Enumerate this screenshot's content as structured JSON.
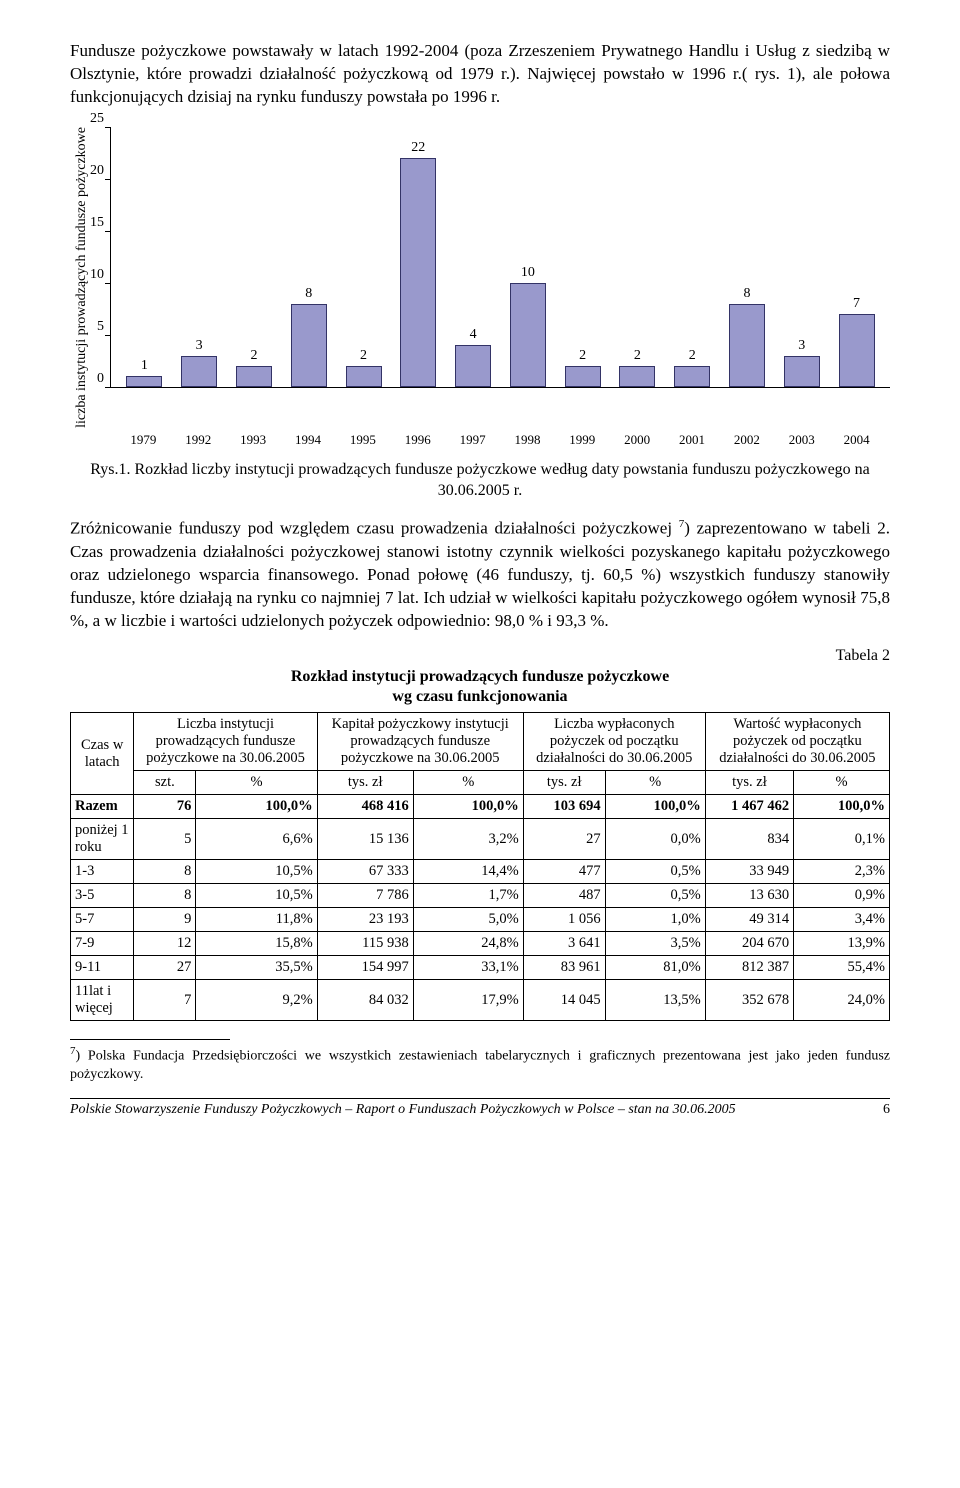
{
  "paragraphs": {
    "p1": "Fundusze pożyczkowe powstawały w latach 1992-2004 (poza Zrzeszeniem Prywatnego Handlu i Usług z siedzibą w Olsztynie, które prowadzi działalność pożyczkową od 1979 r.). Najwięcej powstało w 1996 r.( rys. 1), ale połowa funkcjonujących dzisiaj na rynku funduszy powstała po 1996 r.",
    "p2_a": "Zróżnicowanie funduszy pod względem czasu prowadzenia działalności pożyczkowej ",
    "p2_sup": "7",
    "p2_b": ") zaprezentowano w tabeli 2. Czas prowadzenia działalności pożyczkowej stanowi istotny czynnik wielkości pozyskanego kapitału pożyczkowego oraz udzielonego wsparcia finansowego. Ponad połowę (46 funduszy, tj. 60,5 %) wszystkich funduszy stanowiły fundusze, które działają  na rynku co najmniej 7 lat. Ich udział w wielkości kapitału pożyczkowego ogółem wynosił 75,8 %, a w liczbie i wartości udzielonych pożyczek odpowiednio: 98,0 % i 93,3 %."
  },
  "chart": {
    "ylabel": "liczba instytucji prowadzących fundusze pożyczkowe",
    "ymax": 25,
    "yticks": [
      25,
      20,
      15,
      10,
      5,
      0
    ],
    "bar_color": "#9999cc",
    "bar_border": "#333366",
    "categories": [
      "1979",
      "1992",
      "1993",
      "1994",
      "1995",
      "1996",
      "1997",
      "1998",
      "1999",
      "2000",
      "2001",
      "2002",
      "2003",
      "2004"
    ],
    "values": [
      1,
      3,
      2,
      8,
      2,
      22,
      4,
      10,
      2,
      2,
      2,
      8,
      3,
      7
    ]
  },
  "caption": "Rys.1. Rozkład liczby instytucji prowadzących fundusze pożyczkowe według daty powstania funduszu pożyczkowego na 30.06.2005 r.",
  "table": {
    "label": "Tabela 2",
    "title_l1": "Rozkład instytucji prowadzących fundusze pożyczkowe",
    "title_l2": "wg czasu funkcjonowania",
    "head": {
      "c0": "Czas w latach",
      "c1": "Liczba instytucji prowadzących fundusze pożyczkowe na 30.06.2005",
      "c2": "Kapitał pożyczkowy instytucji prowadzących fundusze pożyczkowe na 30.06.2005",
      "c3": "Liczba wypłaconych pożyczek od początku działalności do 30.06.2005",
      "c4": "Wartość wypłaconych pożyczek od początku działalności do 30.06.2005",
      "u1": "szt.",
      "u2": "%",
      "u3": "tys. zł",
      "u4": "%",
      "u5": "tys. zł",
      "u6": "%",
      "u7": "tys. zł",
      "u8": "%"
    },
    "rows": [
      {
        "bold": true,
        "label": "Razem",
        "v": [
          "76",
          "100,0%",
          "468 416",
          "100,0%",
          "103 694",
          "100,0%",
          "1 467 462",
          "100,0%"
        ]
      },
      {
        "bold": false,
        "label": "poniżej 1 roku",
        "v": [
          "5",
          "6,6%",
          "15 136",
          "3,2%",
          "27",
          "0,0%",
          "834",
          "0,1%"
        ]
      },
      {
        "bold": false,
        "label": "1-3",
        "v": [
          "8",
          "10,5%",
          "67 333",
          "14,4%",
          "477",
          "0,5%",
          "33 949",
          "2,3%"
        ]
      },
      {
        "bold": false,
        "label": "3-5",
        "v": [
          "8",
          "10,5%",
          "7 786",
          "1,7%",
          "487",
          "0,5%",
          "13 630",
          "0,9%"
        ]
      },
      {
        "bold": false,
        "label": "5-7",
        "v": [
          "9",
          "11,8%",
          "23 193",
          "5,0%",
          "1 056",
          "1,0%",
          "49 314",
          "3,4%"
        ]
      },
      {
        "bold": false,
        "label": "7-9",
        "v": [
          "12",
          "15,8%",
          "115 938",
          "24,8%",
          "3 641",
          "3,5%",
          "204 670",
          "13,9%"
        ]
      },
      {
        "bold": false,
        "label": "9-11",
        "v": [
          "27",
          "35,5%",
          "154 997",
          "33,1%",
          "83 961",
          "81,0%",
          "812 387",
          "55,4%"
        ]
      },
      {
        "bold": false,
        "label": "11lat i więcej",
        "v": [
          "7",
          "9,2%",
          "84 032",
          "17,9%",
          "14 045",
          "13,5%",
          "352 678",
          "24,0%"
        ]
      }
    ]
  },
  "footnote": {
    "num": "7",
    "text": ") Polska Fundacja Przedsiębiorczości we wszystkich zestawieniach tabelarycznych i graficznych prezentowana jest jako jeden fundusz pożyczkowy."
  },
  "footer": {
    "text": "Polskie Stowarzyszenie Funduszy Pożyczkowych – Raport o Funduszach Pożyczkowych w Polsce – stan na 30.06.2005",
    "page": "6"
  }
}
